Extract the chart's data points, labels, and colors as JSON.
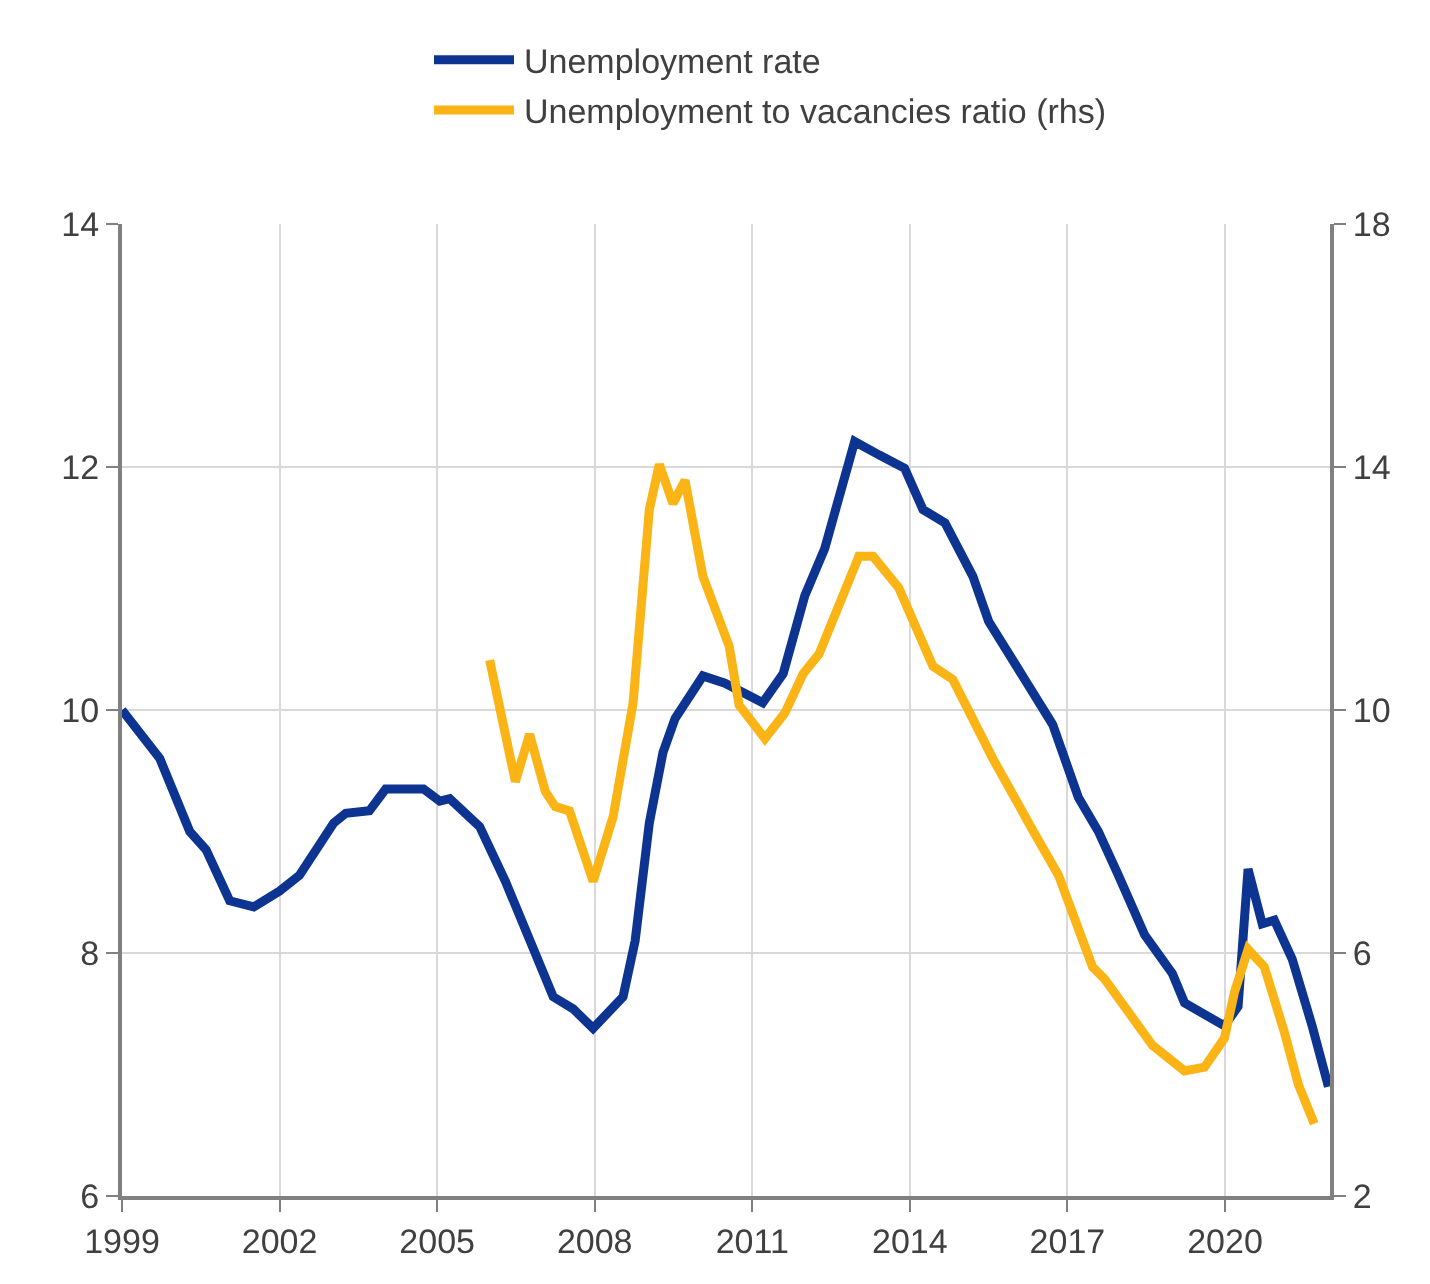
{
  "chart_data": {
    "type": "line",
    "xlim": [
      1999,
      2022
    ],
    "xticks": [
      1999,
      2002,
      2005,
      2008,
      2011,
      2014,
      2017,
      2020
    ],
    "ylim": [
      6,
      14
    ],
    "yticks": [
      6,
      8,
      10,
      12,
      14
    ],
    "y2lim": [
      2,
      18
    ],
    "y2ticks": [
      2,
      6,
      10,
      14,
      18
    ],
    "grid": true,
    "legend": "top",
    "line_style": "solid",
    "marker": "none",
    "series": [
      {
        "name": "Unemployment rate",
        "color": "#0c3490",
        "x": [
          1999.0,
          1999.72,
          2000.29,
          2000.6,
          2001.05,
          2001.51,
          2002.0,
          2002.38,
          2003.03,
          2003.26,
          2003.71,
          2004.02,
          2004.74,
          2005.05,
          2005.24,
          2005.81,
          2006.3,
          2007.21,
          2007.59,
          2007.97,
          2008.54,
          2008.77,
          2009.04,
          2009.3,
          2009.53,
          2010.06,
          2010.48,
          2011.2,
          2011.59,
          2012.0,
          2012.38,
          2012.95,
          2013.41,
          2013.9,
          2014.25,
          2014.67,
          2015.2,
          2015.5,
          2016.19,
          2016.72,
          2017.21,
          2017.59,
          2017.97,
          2018.47,
          2019.0,
          2019.23,
          2019.99,
          2020.25,
          2020.44,
          2020.71,
          2020.94,
          2021.28,
          2021.66,
          2021.97
        ],
        "values": [
          10.0,
          9.6,
          9.0,
          8.85,
          8.43,
          8.38,
          8.51,
          8.64,
          9.07,
          9.15,
          9.17,
          9.35,
          9.35,
          9.25,
          9.27,
          9.04,
          8.59,
          7.64,
          7.54,
          7.38,
          7.64,
          8.1,
          9.07,
          9.65,
          9.93,
          10.28,
          10.22,
          10.06,
          10.3,
          10.94,
          11.33,
          12.21,
          12.1,
          11.99,
          11.65,
          11.54,
          11.1,
          10.73,
          10.25,
          9.88,
          9.28,
          9.0,
          8.64,
          8.15,
          7.83,
          7.59,
          7.4,
          7.56,
          8.69,
          8.24,
          8.27,
          7.95,
          7.4,
          6.9
        ]
      },
      {
        "name": "Unemployment to vacancies ratio (rhs)",
        "color": "#fbb416",
        "axis": "y2",
        "x": [
          2006.0,
          2006.49,
          2006.76,
          2007.06,
          2007.25,
          2007.52,
          2007.97,
          2008.35,
          2008.73,
          2009.04,
          2009.23,
          2009.49,
          2009.72,
          2010.06,
          2010.56,
          2010.75,
          2011.24,
          2011.62,
          2011.97,
          2012.27,
          2013.03,
          2013.3,
          2013.79,
          2014.44,
          2014.82,
          2015.58,
          2016.34,
          2016.83,
          2017.48,
          2017.71,
          2018.62,
          2019.23,
          2019.61,
          2019.99,
          2020.18,
          2020.44,
          2020.75,
          2021.13,
          2021.4,
          2021.7
        ],
        "values": [
          10.82,
          8.82,
          9.6,
          8.66,
          8.41,
          8.34,
          7.18,
          8.24,
          10.11,
          13.3,
          14.04,
          13.4,
          13.78,
          12.2,
          11.05,
          10.08,
          9.53,
          9.95,
          10.6,
          10.92,
          12.53,
          12.53,
          12.01,
          10.72,
          10.5,
          9.2,
          8.02,
          7.28,
          5.77,
          5.57,
          4.48,
          4.06,
          4.12,
          4.6,
          5.35,
          6.06,
          5.77,
          4.7,
          3.83,
          3.19
        ]
      }
    ]
  }
}
